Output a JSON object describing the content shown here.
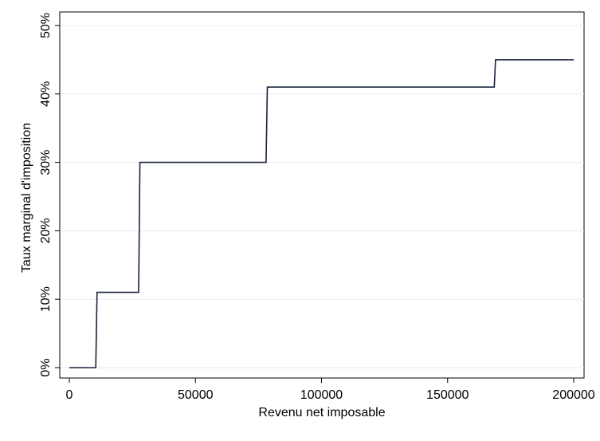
{
  "chart_data": {
    "type": "line",
    "title": "",
    "xlabel": "Revenu net imposable",
    "ylabel": "Taux marginal d'imposition",
    "xlim": [
      0,
      200000
    ],
    "ylim": [
      0,
      50
    ],
    "grid": true,
    "x_ticks": [
      0,
      50000,
      100000,
      150000,
      200000
    ],
    "y_ticks": [
      0,
      10,
      20,
      30,
      40,
      50
    ],
    "x_tick_labels": [
      "0",
      "50000",
      "100000",
      "150000",
      "200000"
    ],
    "y_tick_labels": [
      "0%",
      "10%",
      "20%",
      "30%",
      "40%",
      "50%"
    ],
    "series": [
      {
        "color": "#1a2340",
        "x": [
          0,
          10500,
          11000,
          27500,
          28000,
          78000,
          78500,
          168500,
          169000,
          200000
        ],
        "y": [
          0,
          0,
          11,
          11,
          30,
          30,
          41,
          41,
          45,
          45
        ]
      }
    ]
  }
}
